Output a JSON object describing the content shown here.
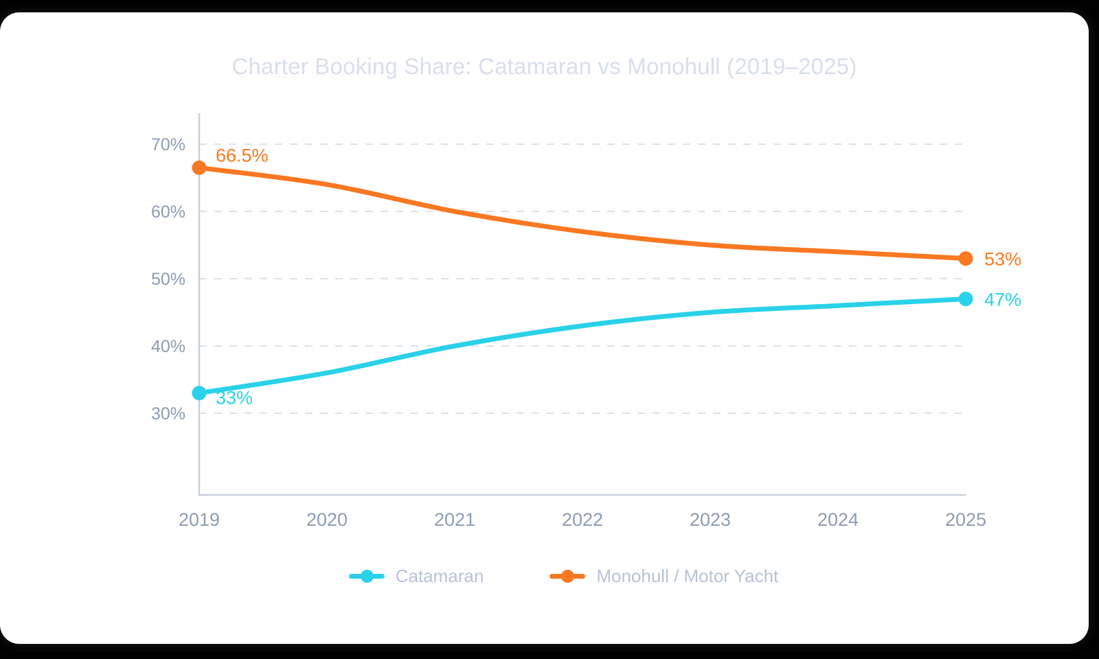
{
  "page": {
    "background_color": "#000000",
    "card_color": "#ffffff"
  },
  "chart_data": {
    "type": "line",
    "title": "Charter Booking Share: Catamaran vs Monohull (2019–2025)",
    "categories": [
      "2019",
      "2020",
      "2021",
      "2022",
      "2023",
      "2024",
      "2025"
    ],
    "series": [
      {
        "name": "Catamaran",
        "color": "#29d2e8",
        "values": [
          33,
          36,
          40,
          43,
          45,
          46,
          47
        ],
        "start_label": "33%",
        "end_label": "47%"
      },
      {
        "name": "Monohull / Motor Yacht",
        "color": "#f97822",
        "values": [
          66.5,
          64,
          60,
          57,
          55,
          54,
          53
        ],
        "start_label": "66.5%",
        "end_label": "53%"
      }
    ],
    "y_ticks": [
      30,
      40,
      50,
      60,
      70
    ],
    "y_tick_labels": [
      "30%",
      "40%",
      "50%",
      "60%",
      "70%"
    ],
    "ylim": [
      30,
      70
    ],
    "xlabel": "",
    "ylabel": "",
    "grid": "dashed-horizontal",
    "legend_position": "bottom",
    "colors": {
      "grid_line": "#dce1eb",
      "axis_line": "#c8d0de",
      "tick_text": "#8d9cb5",
      "title_text": "#d8deea",
      "legend_text": "#b8c3d6"
    }
  }
}
